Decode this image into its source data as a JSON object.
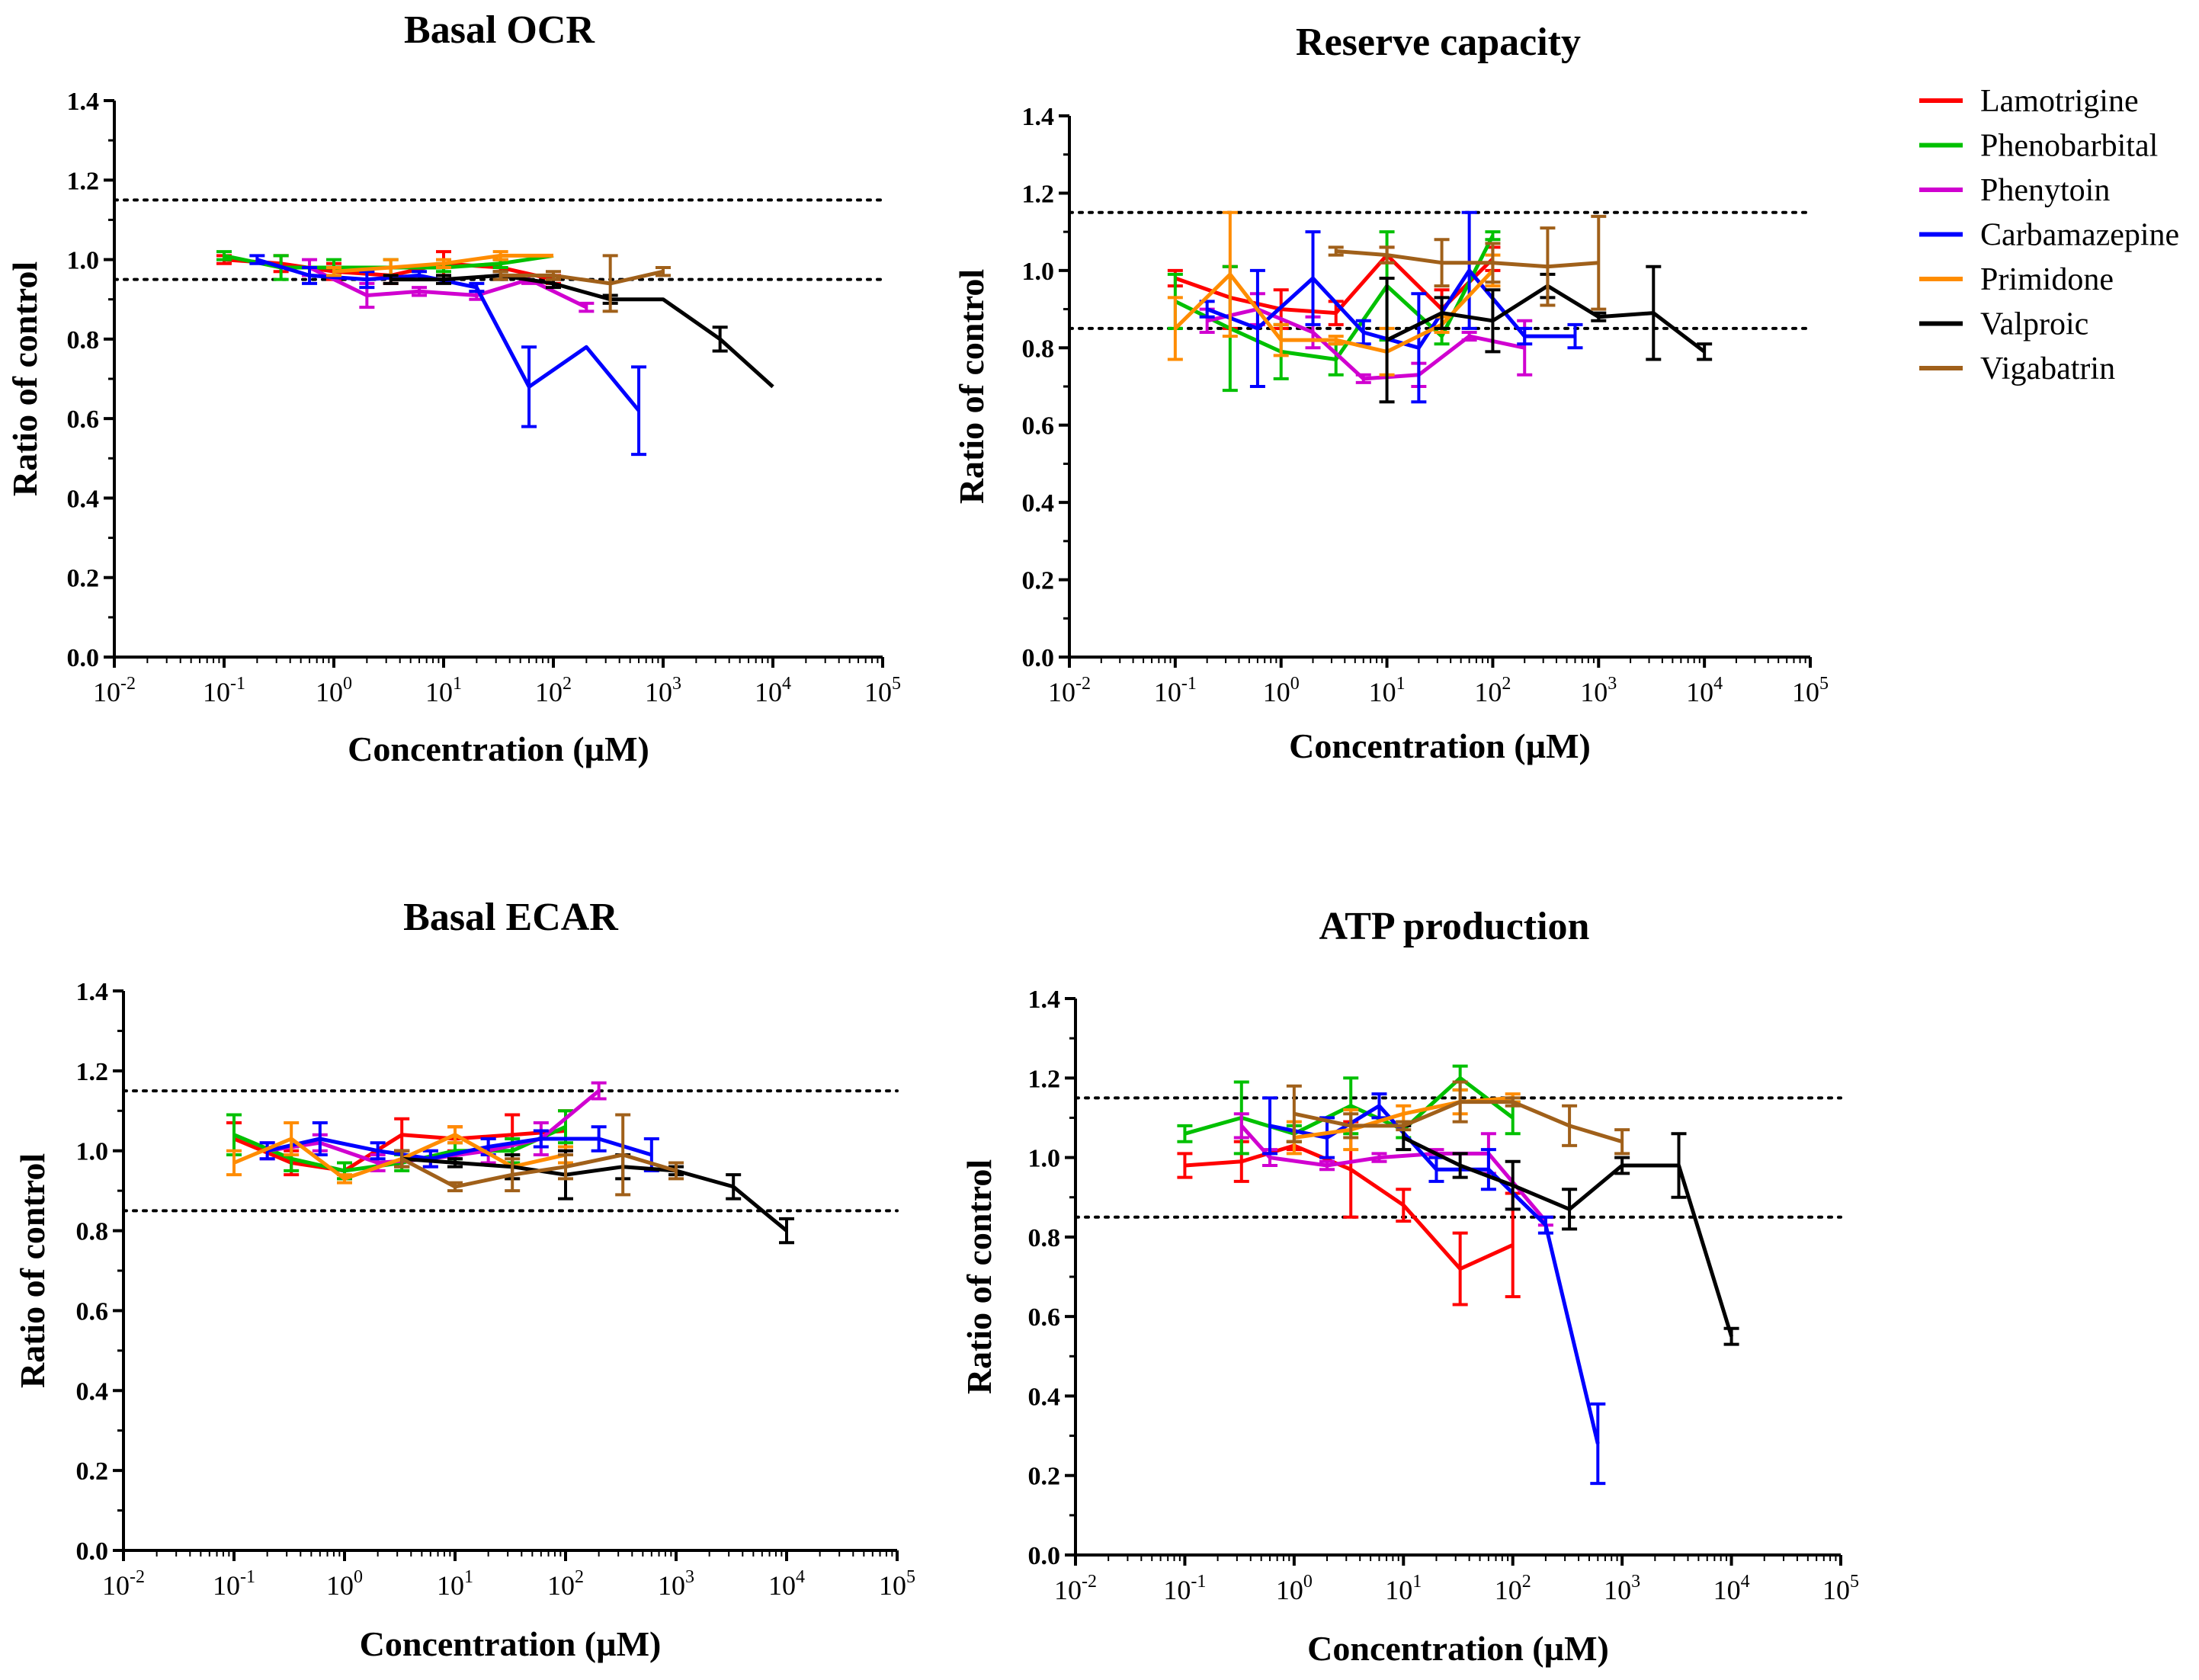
{
  "figure": {
    "y_axis_label": "Ratio of control",
    "x_axis_label": "Concentration (µM)",
    "x_tick_bases": [
      "10",
      "10",
      "10",
      "10",
      "10",
      "10",
      "10",
      "10"
    ],
    "x_tick_exponents": [
      "-2",
      "-1",
      "0",
      "1",
      "2",
      "3",
      "4",
      "5"
    ],
    "y_tick_labels": [
      "0.0",
      "0.2",
      "0.4",
      "0.6",
      "0.8",
      "1.0",
      "1.2",
      "1.4"
    ]
  },
  "legend": {
    "items": [
      {
        "label": "Lamotrigine",
        "color": "#ff0000"
      },
      {
        "label": "Phenobarbital",
        "color": "#00c000"
      },
      {
        "label": "Phenytoin",
        "color": "#d000d0"
      },
      {
        "label": "Carbamazepine",
        "color": "#0000ff"
      },
      {
        "label": "Primidone",
        "color": "#ff8c00"
      },
      {
        "label": "Valproic",
        "color": "#000000"
      },
      {
        "label": "Vigabatrin",
        "color": "#a0601a"
      }
    ]
  },
  "chart_data": [
    {
      "type": "line",
      "title": "Basal OCR",
      "xlabel": "Concentration (µM)",
      "ylabel": "Ratio of control",
      "xscale": "log",
      "xlim": [
        0.01,
        100000
      ],
      "ylim": [
        0,
        1.4
      ],
      "reference_lines": [
        0.95,
        1.15
      ],
      "series": [
        {
          "name": "Lamotrigine",
          "x": [
            0.1,
            0.33,
            1,
            3.3,
            10,
            33,
            100
          ],
          "y": [
            1.0,
            0.99,
            0.97,
            0.96,
            0.99,
            0.98,
            0.95
          ],
          "err": [
            0.01,
            0.02,
            0.02,
            0.02,
            0.03,
            0.02,
            0.01
          ]
        },
        {
          "name": "Phenobarbital",
          "x": [
            0.1,
            0.33,
            1,
            3.3,
            10,
            33,
            100
          ],
          "y": [
            1.01,
            0.98,
            0.98,
            0.98,
            0.98,
            0.99,
            1.01
          ],
          "err": [
            0.01,
            0.03,
            0.02,
            0.02,
            0.01,
            0.01,
            0.0
          ]
        },
        {
          "name": "Phenytoin",
          "x": [
            0.6,
            2,
            6,
            20,
            60,
            200
          ],
          "y": [
            0.98,
            0.91,
            0.92,
            0.91,
            0.95,
            0.88
          ],
          "err": [
            0.02,
            0.03,
            0.01,
            0.01,
            0.01,
            0.01
          ]
        },
        {
          "name": "Carbamazepine",
          "x": [
            0.2,
            0.6,
            2,
            6,
            20,
            60,
            200,
            600
          ],
          "y": [
            1.0,
            0.96,
            0.95,
            0.96,
            0.93,
            0.68,
            0.78,
            0.62
          ],
          "err": [
            0.01,
            0.02,
            0.02,
            0.01,
            0.01,
            0.1,
            0.0,
            0.11
          ]
        },
        {
          "name": "Primidone",
          "x": [
            1,
            3.3,
            10,
            33,
            100
          ],
          "y": [
            0.97,
            0.98,
            0.99,
            1.01,
            1.01
          ],
          "err": [
            0.01,
            0.02,
            0.01,
            0.01,
            0.0
          ]
        },
        {
          "name": "Valproic",
          "x": [
            3.3,
            10,
            33,
            100,
            330,
            1000,
            3300,
            10000
          ],
          "y": [
            0.95,
            0.95,
            0.96,
            0.94,
            0.9,
            0.9,
            0.8,
            0.68
          ],
          "err": [
            0.01,
            0.01,
            0.01,
            0.01,
            0.01,
            0.0,
            0.03,
            0.0
          ]
        },
        {
          "name": "Vigabatrin",
          "x": [
            33,
            100,
            330,
            1000
          ],
          "y": [
            0.96,
            0.96,
            0.94,
            0.97
          ],
          "err": [
            0.01,
            0.01,
            0.07,
            0.01
          ]
        }
      ]
    },
    {
      "type": "line",
      "title": "Reserve capacity",
      "xlabel": "Concentration (µM)",
      "ylabel": "Ratio of control",
      "xscale": "log",
      "xlim": [
        0.01,
        100000
      ],
      "ylim": [
        0,
        1.4
      ],
      "reference_lines": [
        0.85,
        1.15
      ],
      "series": [
        {
          "name": "Lamotrigine",
          "x": [
            0.1,
            0.33,
            1,
            3.3,
            10,
            33,
            100
          ],
          "y": [
            0.98,
            0.93,
            0.9,
            0.89,
            1.04,
            0.9,
            1.03
          ],
          "err": [
            0.02,
            0.08,
            0.05,
            0.03,
            0.02,
            0.05,
            0.03
          ]
        },
        {
          "name": "Phenobarbital",
          "x": [
            0.1,
            0.33,
            1,
            3.3,
            10,
            33,
            100
          ],
          "y": [
            0.92,
            0.85,
            0.79,
            0.77,
            0.96,
            0.83,
            1.09
          ],
          "err": [
            0.07,
            0.16,
            0.07,
            0.04,
            0.14,
            0.02,
            0.01
          ]
        },
        {
          "name": "Phenytoin",
          "x": [
            0.2,
            0.6,
            2,
            6,
            20,
            60,
            200
          ],
          "y": [
            0.87,
            0.9,
            0.84,
            0.72,
            0.73,
            0.83,
            0.8
          ],
          "err": [
            0.03,
            0.04,
            0.04,
            0.01,
            0.03,
            0.01,
            0.07
          ]
        },
        {
          "name": "Carbamazepine",
          "x": [
            0.2,
            0.6,
            2,
            6,
            20,
            60,
            200,
            600
          ],
          "y": [
            0.9,
            0.85,
            0.98,
            0.84,
            0.8,
            1.0,
            0.83,
            0.83
          ],
          "err": [
            0.02,
            0.15,
            0.12,
            0.03,
            0.14,
            0.15,
            0.02,
            0.03
          ]
        },
        {
          "name": "Primidone",
          "x": [
            0.1,
            0.33,
            1,
            3.3,
            10,
            33,
            100
          ],
          "y": [
            0.85,
            0.99,
            0.82,
            0.82,
            0.79,
            0.86,
            1.0
          ],
          "err": [
            0.08,
            0.16,
            0.04,
            0.01,
            0.06,
            0.02,
            0.04
          ]
        },
        {
          "name": "Valproic",
          "x": [
            10,
            33,
            100,
            330,
            1000,
            3300,
            10000
          ],
          "y": [
            0.82,
            0.89,
            0.87,
            0.96,
            0.88,
            0.89,
            0.79
          ],
          "err": [
            0.16,
            0.04,
            0.08,
            0.03,
            0.01,
            0.12,
            0.02
          ]
        },
        {
          "name": "Vigabatrin",
          "x": [
            3.3,
            10,
            33,
            100,
            330,
            1000
          ],
          "y": [
            1.05,
            1.04,
            1.02,
            1.02,
            1.01,
            1.02
          ],
          "err": [
            0.01,
            0.02,
            0.06,
            0.05,
            0.1,
            0.12
          ]
        }
      ]
    },
    {
      "type": "line",
      "title": "Basal ECAR",
      "xlabel": "Concentration (µM)",
      "ylabel": "Ratio of control",
      "xscale": "log",
      "xlim": [
        0.01,
        100000
      ],
      "ylim": [
        0,
        1.4
      ],
      "reference_lines": [
        0.85,
        1.15
      ],
      "series": [
        {
          "name": "Lamotrigine",
          "x": [
            0.1,
            0.33,
            1,
            3.3,
            10,
            33,
            100
          ],
          "y": [
            1.03,
            0.97,
            0.95,
            1.04,
            1.03,
            1.04,
            1.05
          ],
          "err": [
            0.04,
            0.03,
            0.02,
            0.04,
            0.03,
            0.05,
            0.05
          ]
        },
        {
          "name": "Phenobarbital",
          "x": [
            0.1,
            0.33,
            1,
            3.3,
            10,
            33,
            100
          ],
          "y": [
            1.04,
            0.98,
            0.95,
            0.97,
            1.0,
            1.0,
            1.06
          ],
          "err": [
            0.05,
            0.03,
            0.02,
            0.02,
            0.02,
            0.03,
            0.04
          ]
        },
        {
          "name": "Phenytoin",
          "x": [
            0.2,
            0.6,
            2,
            6,
            20,
            60,
            200
          ],
          "y": [
            1.0,
            1.02,
            0.97,
            0.98,
            1.0,
            1.03,
            1.15
          ],
          "err": [
            0.02,
            0.02,
            0.02,
            0.02,
            0.03,
            0.04,
            0.02
          ]
        },
        {
          "name": "Carbamazepine",
          "x": [
            0.2,
            0.6,
            2,
            6,
            20,
            60,
            200,
            600
          ],
          "y": [
            1.0,
            1.03,
            1.0,
            0.98,
            1.01,
            1.03,
            1.03,
            0.99
          ],
          "err": [
            0.02,
            0.04,
            0.02,
            0.02,
            0.02,
            0.02,
            0.03,
            0.04
          ]
        },
        {
          "name": "Primidone",
          "x": [
            0.1,
            0.33,
            1,
            3.3,
            10,
            33,
            100
          ],
          "y": [
            0.97,
            1.03,
            0.93,
            0.98,
            1.04,
            0.96,
            0.99
          ],
          "err": [
            0.03,
            0.04,
            0.01,
            0.02,
            0.02,
            0.03,
            0.02
          ]
        },
        {
          "name": "Valproic",
          "x": [
            3.3,
            10,
            33,
            100,
            330,
            1000,
            3300,
            10000
          ],
          "y": [
            0.98,
            0.97,
            0.96,
            0.94,
            0.96,
            0.95,
            0.91,
            0.8
          ],
          "err": [
            0.02,
            0.01,
            0.03,
            0.06,
            0.03,
            0.01,
            0.03,
            0.03
          ]
        },
        {
          "name": "Vigabatrin",
          "x": [
            3.3,
            10,
            33,
            100,
            330,
            1000
          ],
          "y": [
            0.98,
            0.91,
            0.94,
            0.96,
            0.99,
            0.95
          ],
          "err": [
            0.02,
            0.01,
            0.04,
            0.03,
            0.1,
            0.02
          ]
        }
      ]
    },
    {
      "type": "line",
      "title": "ATP production",
      "xlabel": "Concentration (µM)",
      "ylabel": "Ratio of control",
      "xscale": "log",
      "xlim": [
        0.01,
        100000
      ],
      "ylim": [
        0,
        1.4
      ],
      "reference_lines": [
        0.85,
        1.15
      ],
      "series": [
        {
          "name": "Lamotrigine",
          "x": [
            0.1,
            0.33,
            1,
            3.3,
            10,
            33,
            100
          ],
          "y": [
            0.98,
            0.99,
            1.03,
            0.97,
            0.88,
            0.72,
            0.78
          ],
          "err": [
            0.03,
            0.05,
            0.01,
            0.12,
            0.04,
            0.09,
            0.13
          ]
        },
        {
          "name": "Phenobarbital",
          "x": [
            0.1,
            0.33,
            1,
            3.3,
            10,
            33,
            100
          ],
          "y": [
            1.06,
            1.1,
            1.06,
            1.13,
            1.07,
            1.2,
            1.1
          ],
          "err": [
            0.02,
            0.09,
            0.02,
            0.07,
            0.02,
            0.03,
            0.04
          ]
        },
        {
          "name": "Phenytoin",
          "x": [
            0.33,
            0.6,
            2,
            6,
            20,
            60,
            200
          ],
          "y": [
            1.08,
            1.0,
            0.98,
            1.0,
            1.01,
            1.01,
            0.84
          ],
          "err": [
            0.03,
            0.02,
            0.01,
            0.01,
            0.01,
            0.05,
            0.01
          ]
        },
        {
          "name": "Carbamazepine",
          "x": [
            0.6,
            2,
            6,
            20,
            60,
            200,
            600
          ],
          "y": [
            1.08,
            1.05,
            1.13,
            0.97,
            0.97,
            0.83,
            0.28
          ],
          "err": [
            0.07,
            0.05,
            0.03,
            0.03,
            0.05,
            0.02,
            0.1
          ]
        },
        {
          "name": "Primidone",
          "x": [
            1,
            3.3,
            10,
            33,
            100
          ],
          "y": [
            1.05,
            1.07,
            1.11,
            1.14,
            1.15
          ],
          "err": [
            0.04,
            0.05,
            0.02,
            0.03,
            0.01
          ]
        },
        {
          "name": "Valproic",
          "x": [
            10,
            33,
            100,
            330,
            1000,
            3300,
            10000
          ],
          "y": [
            1.05,
            0.98,
            0.93,
            0.87,
            0.98,
            0.98,
            0.55
          ],
          "err": [
            0.03,
            0.03,
            0.06,
            0.05,
            0.02,
            0.08,
            0.02
          ]
        },
        {
          "name": "Vigabatrin",
          "x": [
            1,
            3.3,
            10,
            33,
            100,
            330,
            1000
          ],
          "y": [
            1.11,
            1.08,
            1.08,
            1.14,
            1.14,
            1.08,
            1.04
          ],
          "err": [
            0.07,
            0.03,
            0.01,
            0.05,
            0.01,
            0.05,
            0.03
          ]
        }
      ]
    }
  ]
}
